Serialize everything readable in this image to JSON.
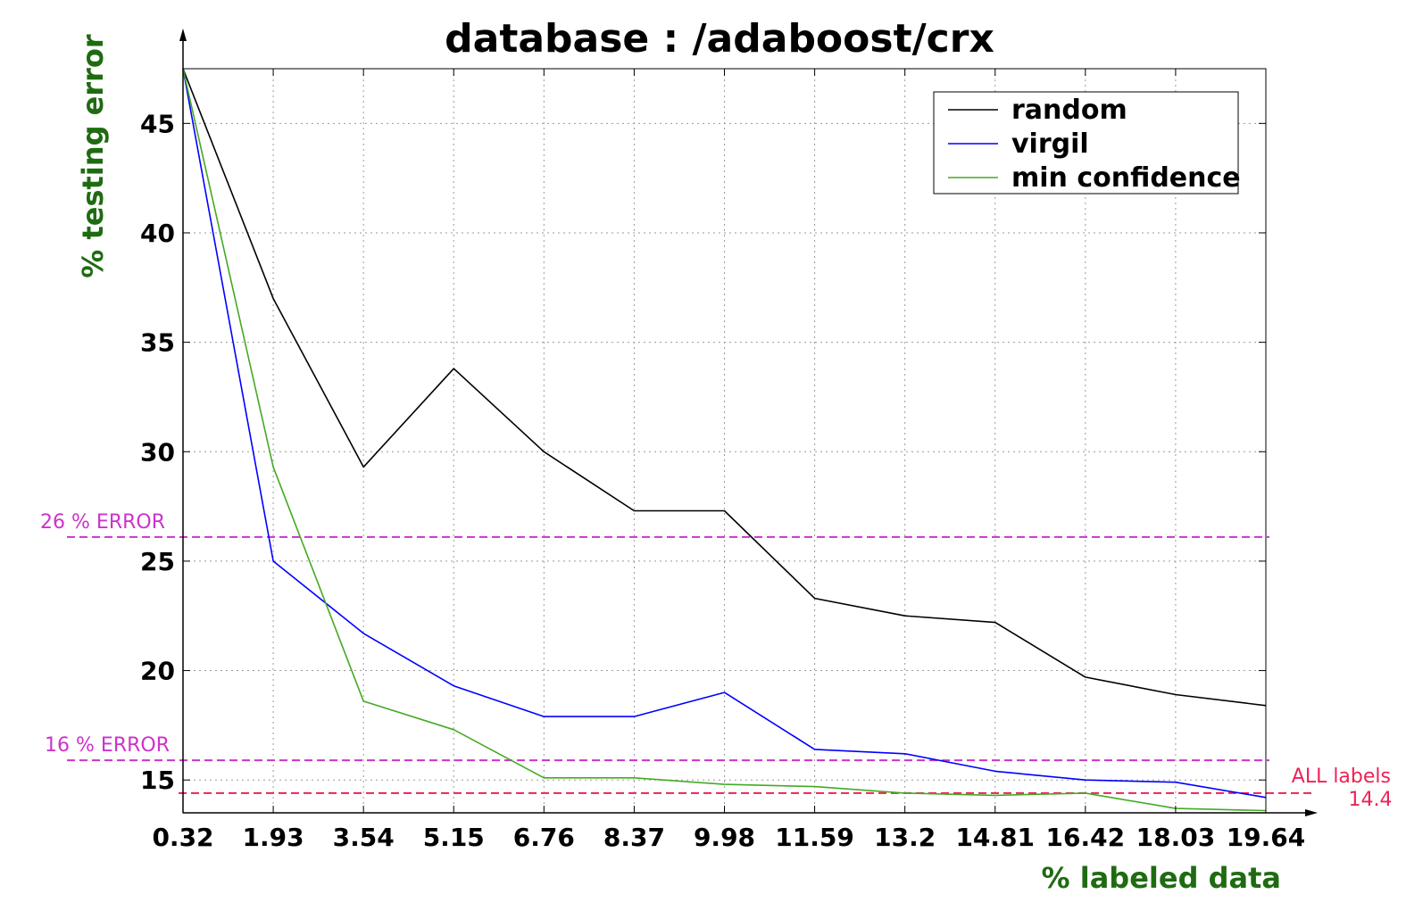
{
  "chart_data": {
    "type": "line",
    "title": "database : /adaboost/crx",
    "xlabel": "% labeled data",
    "ylabel": "% testing error",
    "x": [
      "0.32",
      "1.93",
      "3.54",
      "5.15",
      "6.76",
      "8.37",
      "9.98",
      "11.59",
      "13.2",
      "14.81",
      "16.42",
      "18.03",
      "19.64"
    ],
    "yticks": [
      15,
      20,
      25,
      30,
      35,
      40,
      45
    ],
    "ylim": [
      13.5,
      47.5
    ],
    "grid": true,
    "legend_position": "top-right",
    "series": [
      {
        "name": "random",
        "color": "#000000",
        "values": [
          47.5,
          37.0,
          29.3,
          33.8,
          30.0,
          27.3,
          27.3,
          23.3,
          22.5,
          22.2,
          19.7,
          18.9,
          18.4
        ]
      },
      {
        "name": "virgil",
        "color": "#0000ff",
        "values": [
          47.5,
          25.0,
          21.7,
          19.3,
          17.9,
          17.9,
          19.0,
          16.4,
          16.2,
          15.4,
          15.0,
          14.9,
          14.2
        ]
      },
      {
        "name": "min confidence",
        "color": "#44aa22",
        "values": [
          47.5,
          29.3,
          18.6,
          17.3,
          15.1,
          15.1,
          14.8,
          14.7,
          14.4,
          14.3,
          14.4,
          13.7,
          13.6
        ]
      }
    ],
    "reference_lines": [
      {
        "label": "26 % ERROR",
        "value": 26.1,
        "color": "#cc33cc"
      },
      {
        "label": "16 % ERROR",
        "value": 15.9,
        "color": "#cc33cc"
      },
      {
        "label": "ALL labels",
        "value": 14.4,
        "value_label": "14.4",
        "color": "#ee2255"
      }
    ]
  }
}
